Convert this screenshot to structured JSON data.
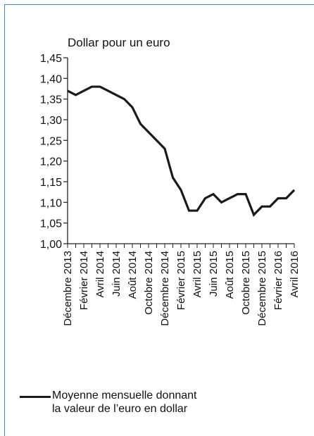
{
  "chart_data": {
    "type": "line",
    "unit_label": "Dollar pour un euro",
    "ylim": [
      1.0,
      1.45
    ],
    "y_ticks": [
      "1,00",
      "1,05",
      "1,10",
      "1,15",
      "1,20",
      "1,25",
      "1,30",
      "1,35",
      "1,40",
      "1,45"
    ],
    "x_labels": [
      "Décembre 2013",
      "Février 2014",
      "Avril 2014",
      "Juin 2014",
      "Août 2014",
      "Octobre 2014",
      "Décembre 2014",
      "Février 2015",
      "Avril 2015",
      "Juin 2015",
      "Août 2015",
      "Octobre 2015",
      "Décembre 2015",
      "Février 2016",
      "Avril 2016"
    ],
    "series": [
      {
        "name": "Moyenne mensuelle donnant la valeur de l’euro en dollar",
        "color": "#1a1a1a",
        "values": [
          1.37,
          1.36,
          1.37,
          1.38,
          1.38,
          1.37,
          1.36,
          1.35,
          1.33,
          1.29,
          1.27,
          1.25,
          1.23,
          1.16,
          1.13,
          1.08,
          1.08,
          1.11,
          1.12,
          1.1,
          1.11,
          1.12,
          1.12,
          1.07,
          1.09,
          1.09,
          1.11,
          1.11,
          1.13
        ]
      }
    ],
    "grid": false,
    "legend_position": "bottom"
  },
  "legend": {
    "text": "Moyenne mensuelle donnant\nla valeur de l’euro en dollar"
  }
}
